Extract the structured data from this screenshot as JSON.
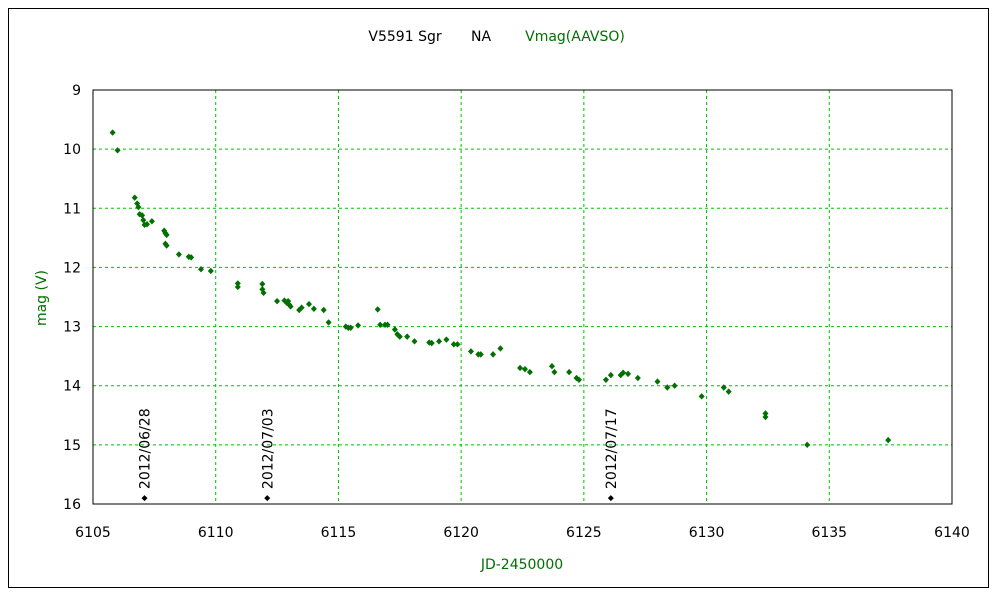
{
  "chart_data": {
    "type": "scatter",
    "title_star": "V5591 Sgr",
    "title_na": "NA",
    "title_series": "Vmag(AAVSO)",
    "xlabel": "JD-2450000",
    "ylabel": "mag (V)",
    "xlim": [
      6105,
      6140
    ],
    "ylim": [
      16,
      9
    ],
    "y_inverted": true,
    "grid": true,
    "x_ticks": [
      6105,
      6110,
      6115,
      6120,
      6125,
      6130,
      6135,
      6140
    ],
    "y_ticks": [
      9,
      10,
      11,
      12,
      13,
      14,
      15,
      16
    ],
    "colors": {
      "series": "#007000",
      "grid": "#00c000",
      "marker_dates": "#000000"
    },
    "date_markers": [
      {
        "label": "2012/06/28",
        "x": 6107.1,
        "y": 15.9
      },
      {
        "label": "2012/07/03",
        "x": 6112.1,
        "y": 15.9
      },
      {
        "label": "2012/07/17",
        "x": 6126.1,
        "y": 15.9
      }
    ],
    "series": [
      {
        "name": "Vmag(AAVSO)",
        "points": [
          [
            6105.8,
            9.72
          ],
          [
            6106.0,
            10.02
          ],
          [
            6106.7,
            10.82
          ],
          [
            6106.8,
            10.92
          ],
          [
            6106.85,
            10.98
          ],
          [
            6106.9,
            11.1
          ],
          [
            6107.0,
            11.12
          ],
          [
            6107.05,
            11.2
          ],
          [
            6107.1,
            11.28
          ],
          [
            6107.2,
            11.27
          ],
          [
            6107.4,
            11.22
          ],
          [
            6107.9,
            11.38
          ],
          [
            6107.95,
            11.42
          ],
          [
            6108.0,
            11.45
          ],
          [
            6107.95,
            11.6
          ],
          [
            6108.0,
            11.63
          ],
          [
            6108.5,
            11.78
          ],
          [
            6108.9,
            11.82
          ],
          [
            6109.0,
            11.83
          ],
          [
            6109.4,
            12.03
          ],
          [
            6109.8,
            12.06
          ],
          [
            6110.9,
            12.27
          ],
          [
            6110.9,
            12.33
          ],
          [
            6111.9,
            12.28
          ],
          [
            6111.9,
            12.37
          ],
          [
            6111.95,
            12.43
          ],
          [
            6112.5,
            12.57
          ],
          [
            6112.8,
            12.56
          ],
          [
            6112.9,
            12.6
          ],
          [
            6112.95,
            12.57
          ],
          [
            6113.0,
            12.63
          ],
          [
            6113.05,
            12.66
          ],
          [
            6113.4,
            12.72
          ],
          [
            6113.5,
            12.68
          ],
          [
            6113.8,
            12.62
          ],
          [
            6114.0,
            12.7
          ],
          [
            6114.4,
            12.72
          ],
          [
            6114.6,
            12.93
          ],
          [
            6115.3,
            13.0
          ],
          [
            6115.4,
            13.02
          ],
          [
            6115.5,
            13.02
          ],
          [
            6115.8,
            12.98
          ],
          [
            6116.6,
            12.71
          ],
          [
            6116.7,
            12.97
          ],
          [
            6116.9,
            12.97
          ],
          [
            6117.0,
            12.97
          ],
          [
            6117.3,
            13.05
          ],
          [
            6117.4,
            13.13
          ],
          [
            6117.5,
            13.17
          ],
          [
            6117.8,
            13.17
          ],
          [
            6118.1,
            13.25
          ],
          [
            6118.7,
            13.27
          ],
          [
            6118.8,
            13.28
          ],
          [
            6119.1,
            13.25
          ],
          [
            6119.4,
            13.22
          ],
          [
            6119.7,
            13.3
          ],
          [
            6119.85,
            13.3
          ],
          [
            6120.4,
            13.42
          ],
          [
            6120.7,
            13.47
          ],
          [
            6120.8,
            13.47
          ],
          [
            6121.3,
            13.47
          ],
          [
            6121.6,
            13.37
          ],
          [
            6122.4,
            13.7
          ],
          [
            6122.6,
            13.72
          ],
          [
            6122.8,
            13.77
          ],
          [
            6123.7,
            13.67
          ],
          [
            6123.8,
            13.77
          ],
          [
            6124.4,
            13.77
          ],
          [
            6124.7,
            13.87
          ],
          [
            6124.8,
            13.9
          ],
          [
            6125.9,
            13.9
          ],
          [
            6126.1,
            13.82
          ],
          [
            6126.5,
            13.82
          ],
          [
            6126.6,
            13.78
          ],
          [
            6126.8,
            13.8
          ],
          [
            6127.2,
            13.87
          ],
          [
            6128.0,
            13.93
          ],
          [
            6128.4,
            14.03
          ],
          [
            6128.7,
            14.0
          ],
          [
            6129.8,
            14.18
          ],
          [
            6130.7,
            14.03
          ],
          [
            6130.9,
            14.1
          ],
          [
            6132.4,
            14.47
          ],
          [
            6132.4,
            14.53
          ],
          [
            6134.1,
            15.0
          ],
          [
            6137.4,
            14.92
          ]
        ]
      }
    ]
  }
}
